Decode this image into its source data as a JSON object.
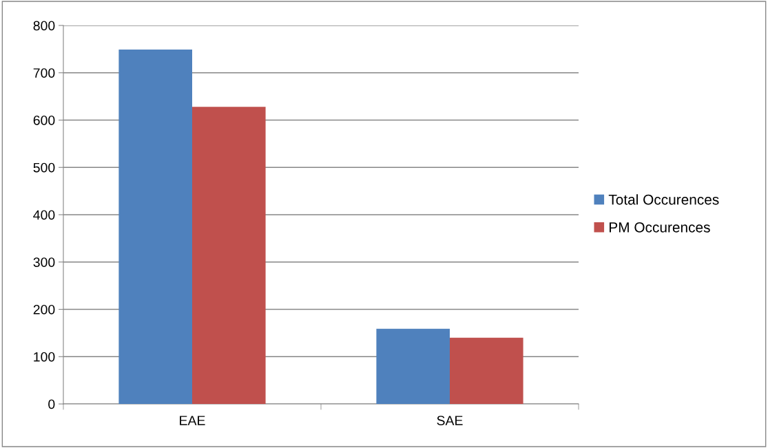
{
  "chart_data": {
    "type": "bar",
    "categories": [
      "EAE",
      "SAE"
    ],
    "series": [
      {
        "name": "Total Occurences",
        "color": "#4f81bd",
        "values": [
          749,
          159
        ]
      },
      {
        "name": "PM Occurences",
        "color": "#c0504d",
        "values": [
          628,
          140
        ]
      }
    ],
    "ylim": [
      0,
      800
    ],
    "yticks": [
      0,
      100,
      200,
      300,
      400,
      500,
      600,
      700,
      800
    ],
    "grid": "y",
    "legend": "right"
  }
}
